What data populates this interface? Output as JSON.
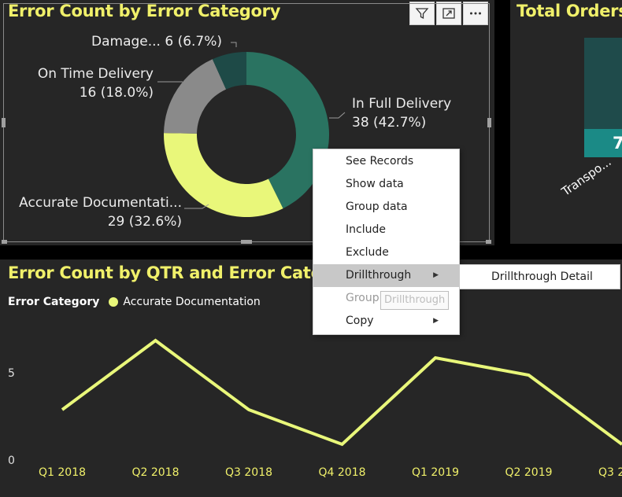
{
  "donut_visual": {
    "title": "Error Count by Error Category",
    "slice_labels": [
      {
        "line1": "In Full Delivery",
        "line2": "38 (42.7%)"
      },
      {
        "line1": "Accurate Documentati...",
        "line2": "29 (32.6%)"
      },
      {
        "line1": "On Time Delivery",
        "line2": "16 (18.0%)"
      },
      {
        "line1": "Damage... 6 (6.7%)",
        "line2": ""
      }
    ],
    "toolbar": [
      "filter-icon",
      "focus-mode-icon",
      "more-options-icon"
    ]
  },
  "orders_visual": {
    "title": "Total Orders",
    "bar_value": "7",
    "category_label": "Transpo..."
  },
  "line_visual": {
    "title": "Error Count by QTR and Error Catego",
    "legend_title": "Error Category",
    "legend_item": "Accurate Documentation",
    "y_ticks": [
      "5",
      "0"
    ]
  },
  "context_menu": {
    "items": [
      {
        "label": "See Records",
        "has_submenu": false,
        "active": false,
        "disabled": false
      },
      {
        "label": "Show data",
        "has_submenu": false,
        "active": false,
        "disabled": false
      },
      {
        "label": "Group data",
        "has_submenu": false,
        "active": false,
        "disabled": false
      },
      {
        "label": "Include",
        "has_submenu": false,
        "active": false,
        "disabled": false
      },
      {
        "label": "Exclude",
        "has_submenu": false,
        "active": false,
        "disabled": false
      },
      {
        "label": "Drillthrough",
        "has_submenu": true,
        "active": true,
        "disabled": false
      },
      {
        "label": "Group",
        "has_submenu": false,
        "active": false,
        "disabled": true
      },
      {
        "label": "Copy",
        "has_submenu": true,
        "active": false,
        "disabled": false
      }
    ],
    "submenu_item": "Drillthrough Detail",
    "tooltip": "Drillthrough"
  },
  "colors": {
    "background": "#262626",
    "title_yellow": "#f0f06a",
    "in_full": "#2a7361",
    "accurate_doc": "#e9f77a",
    "on_time": "#8a8a8a",
    "damage": "#1e4a47",
    "line": "#e9f77a",
    "bar_top": "#1f4b4b",
    "bar_bottom": "#1b8a86"
  },
  "chart_data": [
    {
      "type": "pie",
      "title": "Error Count by Error Category",
      "categories": [
        "In Full Delivery",
        "Accurate Documentati...",
        "On Time Delivery",
        "Damage..."
      ],
      "values": [
        38,
        29,
        16,
        6
      ],
      "percent_labels": [
        "42.7%",
        "32.6%",
        "18.0%",
        "6.7%"
      ],
      "donut": true
    },
    {
      "type": "line",
      "title": "Error Count by QTR and Error Catego",
      "categories": [
        "Q1 2018",
        "Q2 2018",
        "Q3 2018",
        "Q4 2018",
        "Q1 2019",
        "Q2 2019",
        "Q3 2..."
      ],
      "series": [
        {
          "name": "Accurate Documentation",
          "values": [
            3,
            7,
            3,
            1,
            6,
            5,
            1
          ]
        }
      ],
      "ylim": [
        0,
        10
      ],
      "y_ticks": [
        0,
        5
      ],
      "legend": "top-left"
    }
  ]
}
